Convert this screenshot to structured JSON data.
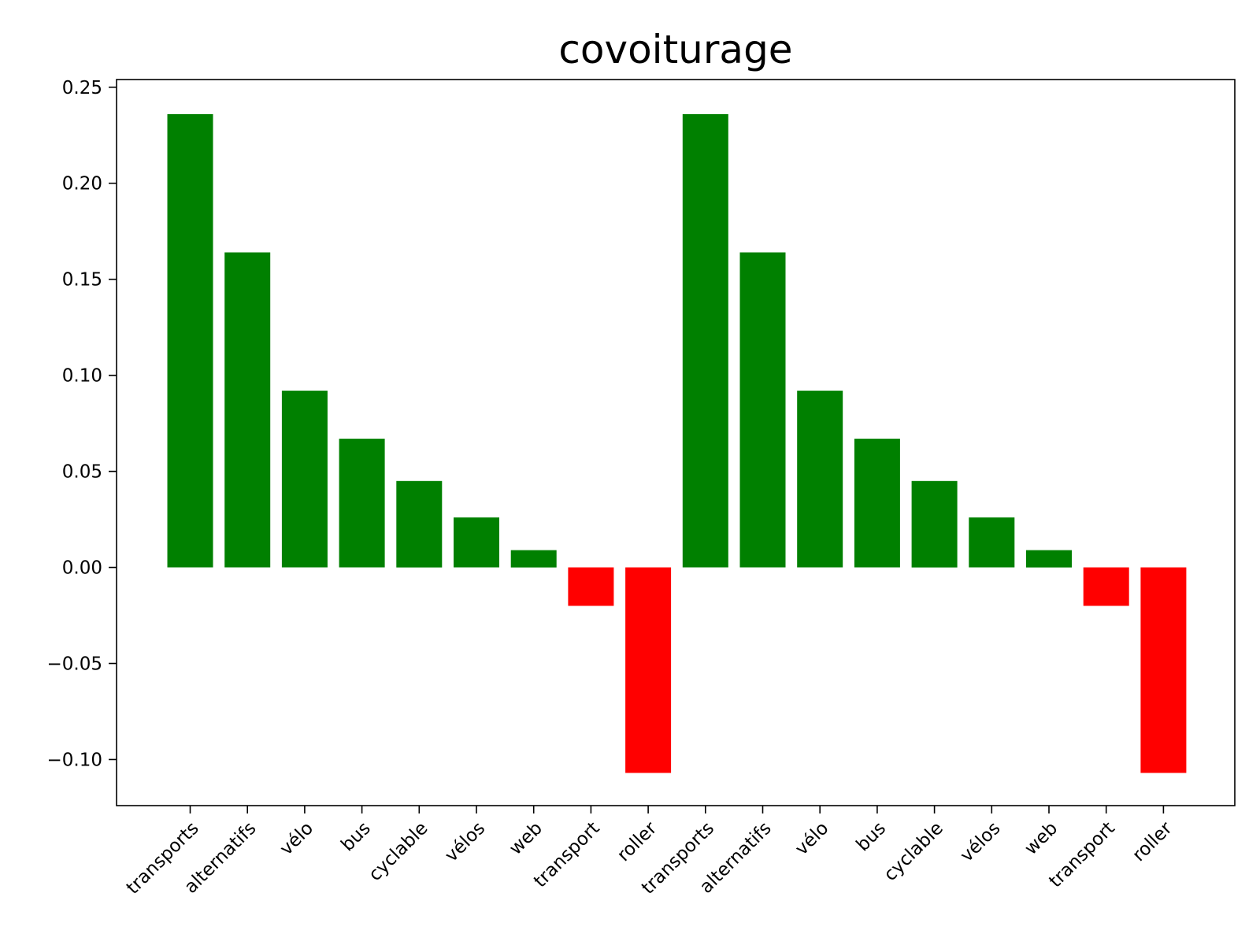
{
  "chart_data": {
    "type": "bar",
    "title": "covoiturage",
    "xlabel": "",
    "ylabel": "",
    "categories": [
      "transports",
      "alternatifs",
      "vélo",
      "bus",
      "cyclable",
      "vélos",
      "web",
      "transport",
      "roller",
      "transports",
      "alternatifs",
      "vélo",
      "bus",
      "cyclable",
      "vélos",
      "web",
      "transport",
      "roller"
    ],
    "values": [
      0.236,
      0.164,
      0.092,
      0.067,
      0.045,
      0.026,
      0.009,
      -0.02,
      -0.107,
      0.236,
      0.164,
      0.092,
      0.067,
      0.045,
      0.026,
      0.009,
      -0.02,
      -0.107
    ],
    "ylim": [
      -0.124,
      0.254
    ],
    "yticks": [
      0.25,
      0.2,
      0.15,
      0.1,
      0.05,
      0.0,
      -0.05,
      -0.1
    ],
    "ytick_labels": [
      "0.25",
      "0.20",
      "0.15",
      "0.10",
      "0.05",
      "0.00",
      "−0.05",
      "−0.10"
    ],
    "colors": {
      "positive": "#008000",
      "negative": "#ff0000"
    },
    "grid": false,
    "legend": "none"
  }
}
